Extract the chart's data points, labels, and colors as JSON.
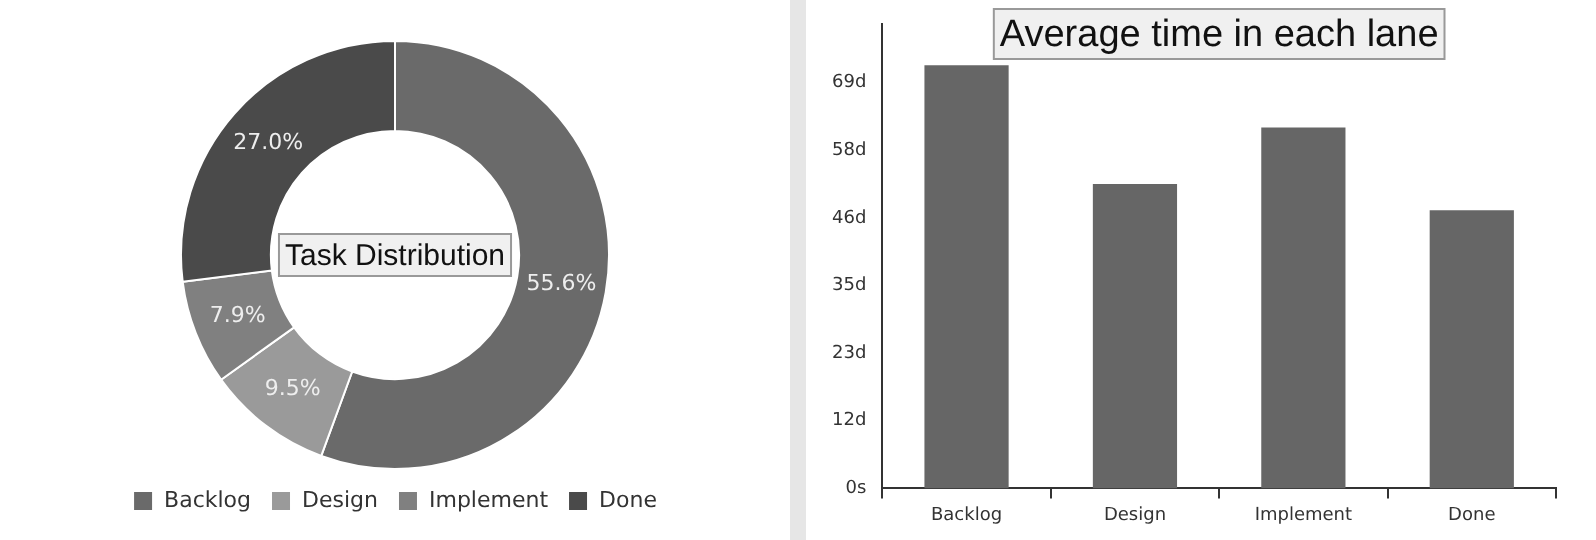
{
  "chart_data": [
    {
      "type": "donut",
      "title": "Task Distribution",
      "categories": [
        "Backlog",
        "Design",
        "Implement",
        "Done"
      ],
      "values": [
        55.6,
        9.5,
        7.9,
        27.0
      ],
      "colors": [
        "#6a6a6a",
        "#9a9a9a",
        "#808080",
        "#4a4a4a"
      ],
      "value_labels": [
        "55.6%",
        "9.5%",
        "7.9%",
        "27.0%"
      ],
      "legend": "bottom"
    },
    {
      "type": "bar",
      "title": "Average time in each lane",
      "categories": [
        "Backlog",
        "Design",
        "Implement",
        "Done"
      ],
      "values": [
        72,
        51.8,
        61.4,
        47.3
      ],
      "color": "#666666",
      "ylim": [
        0,
        79
      ],
      "yticks": [
        {
          "value": 0,
          "label": "0s"
        },
        {
          "value": 11.5,
          "label": "12d"
        },
        {
          "value": 23,
          "label": "23d"
        },
        {
          "value": 34.5,
          "label": "35d"
        },
        {
          "value": 46,
          "label": "46d"
        },
        {
          "value": 57.5,
          "label": "58d"
        },
        {
          "value": 69,
          "label": "69d"
        }
      ],
      "grid": false,
      "legend": false
    }
  ]
}
